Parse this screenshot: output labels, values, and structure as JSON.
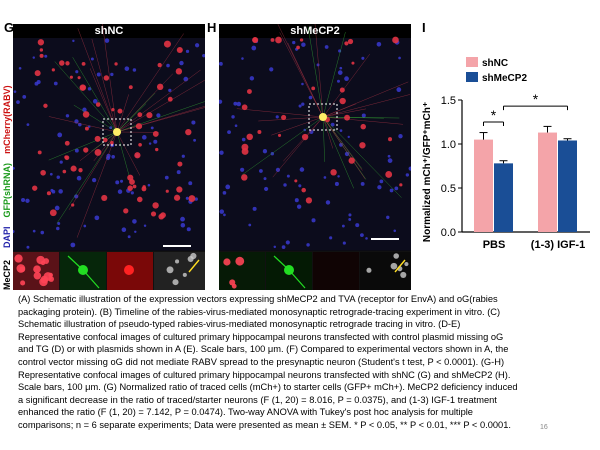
{
  "panels": {
    "g": {
      "letter": "G",
      "title": "shNC"
    },
    "h": {
      "letter": "H",
      "title": "shMeCP2"
    },
    "i": {
      "letter": "I"
    }
  },
  "stain_labels": {
    "dapi": "DAPI",
    "gfp": "GFP(shRNA)",
    "mcherry": "mCherry(RABV)",
    "mecp2": "MeCP2"
  },
  "colors": {
    "shNC": "#f4a4a9",
    "shMeCP2": "#1a4e96",
    "dapi": "#2222aa",
    "gfp": "#1a9a1a",
    "mcherry": "#cc1111"
  },
  "chart_data": {
    "type": "bar",
    "categories": [
      "PBS",
      "(1-3) IGF-1"
    ],
    "series": [
      {
        "name": "shNC",
        "values": [
          1.05,
          1.13
        ],
        "errors": [
          0.08,
          0.07
        ]
      },
      {
        "name": "shMeCP2",
        "values": [
          0.78,
          1.04
        ],
        "errors": [
          0.03,
          0.02
        ]
      }
    ],
    "ylabel": "Normalized mCh⁺/GFP⁺mCh⁺",
    "ylim": [
      0,
      1.5
    ],
    "yticks": [
      "0.0",
      "0.5",
      "1.0",
      "1.5"
    ],
    "legend": "top-left",
    "annotations": [
      "*",
      "*"
    ]
  },
  "caption": {
    "lines": [
      "(A) Schematic illustration of the expression vectors expressing shMeCP2 and TVA (receptor for EnvA) and oG(rabies",
      "packaging protein). (B) Timeline of the rabies-virus-mediated monosynaptic retrograde-tracing experiment in vitro. (C)",
      "Schematic illustration of pseudo-typed rabies-virus-mediated monosynaptic retrograde tracing in vitro. (D-E)",
      "Representative confocal images of cultured primary hippocampal neurons transfected with control plasmid missing oG",
      "and TG (D) or with plasmids shown in A (E). Scale bars, 100 μm. (F) Compared to experimental vectors shown in A, the",
      "control vector missing oG did not mediate RABV spread to the presynaptic neuron (Student's t test, P < 0.0001). (G-H)",
      "Representative confocal images of cultured primary hippocampal neurons transfected with shNC (G) and shMeCP2 (H).",
      "Scale bars, 100 μm. (G) Normalized ratio of traced cells (mCh+) to starter cells (GFP+ mCh+). MeCP2 deficiency induced",
      "a significant decrease in the ratio of traced/starter neurons (F (1, 20) = 8.016, P = 0.0375), and (1-3) IGF-1 treatment",
      "enhanced the ratio (F (1, 20) = 7.142, P = 0.0474). Two-way ANOVA with Tukey's post hoc analysis for multiple",
      "comparisons; n = 6 separate experiments; Data were presented as mean ± SEM. * P < 0.05, ** P < 0.01, *** P < 0.0001."
    ]
  },
  "page_number": "16"
}
